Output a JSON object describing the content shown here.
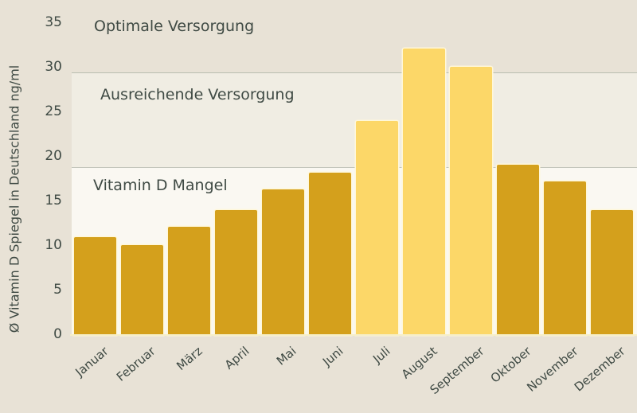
{
  "chart_data": {
    "type": "bar",
    "title": "",
    "xlabel": "",
    "ylabel": "Ø Vitamin D Spiegel in Deutschland ng/ml",
    "ylim": [
      0,
      35
    ],
    "yticks": [
      0,
      5,
      10,
      15,
      20,
      25,
      30,
      35
    ],
    "grid": false,
    "categories": [
      "Januar",
      "Februar",
      "März",
      "April",
      "Mai",
      "Juni",
      "Juli",
      "August",
      "September",
      "Oktober",
      "November",
      "Dezember"
    ],
    "values": [
      11.0,
      10.1,
      12.1,
      14.0,
      16.3,
      18.2,
      24.0,
      32.1,
      30.1,
      19.1,
      17.2,
      14.0
    ],
    "bar_colors": [
      "#d4a01c",
      "#d4a01c",
      "#d4a01c",
      "#d4a01c",
      "#d4a01c",
      "#d4a01c",
      "#fcd768",
      "#fcd768",
      "#fcd768",
      "#d4a01c",
      "#d4a01c",
      "#d4a01c"
    ],
    "zones": [
      {
        "label": "Optimale Versorgung",
        "from": 30,
        "to": 35,
        "color": "#e8e2d6"
      },
      {
        "label": "Ausreichende Versorgung",
        "from": 20,
        "to": 30,
        "color": "#f0ede3"
      },
      {
        "label": "Vitamin D Mangel",
        "from": 0,
        "to": 20,
        "color": "#faf8f2"
      }
    ]
  },
  "labels": {
    "zone_optimal": "Optimale Versorgung",
    "zone_ausreichend": "Ausreichende Versorgung",
    "zone_mangel": "Vitamin D Mangel",
    "ylabel": "Ø Vitamin D Spiegel in Deutschland ng/ml"
  },
  "colors": {
    "bar_dark": "#d4a01c",
    "bar_light": "#fcd768",
    "background": "#e8e2d6",
    "text": "#3f4a44"
  }
}
